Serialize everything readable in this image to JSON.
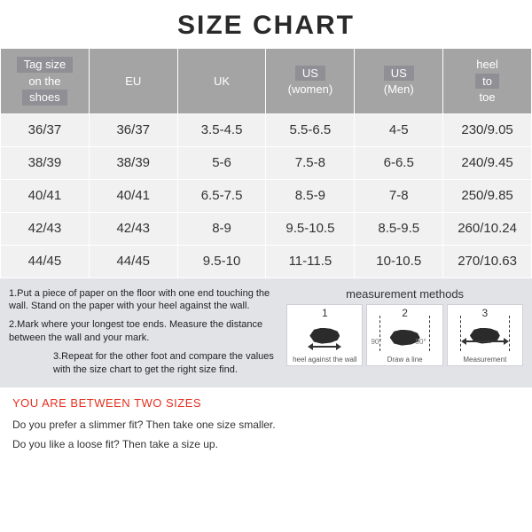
{
  "title": "SIZE CHART",
  "title_fontsize": 30,
  "table": {
    "header_bg": "#a4a4a4",
    "header_band_bg": "#8f8f95",
    "row_bg": "#f1f1f1",
    "border_color": "#ffffff",
    "columns": [
      {
        "lines": [
          "Tag size",
          "on the",
          "shoes"
        ],
        "banded": [
          true,
          false,
          true
        ]
      },
      {
        "lines": [
          "EU"
        ],
        "banded": [
          false
        ]
      },
      {
        "lines": [
          "UK"
        ],
        "banded": [
          false
        ]
      },
      {
        "lines": [
          "US",
          "(women)"
        ],
        "banded": [
          true,
          false
        ]
      },
      {
        "lines": [
          "US",
          "(Men)"
        ],
        "banded": [
          true,
          false
        ]
      },
      {
        "lines": [
          "heel",
          "to",
          "toe"
        ],
        "banded": [
          false,
          true,
          false
        ]
      }
    ],
    "rows": [
      [
        "36/37",
        "36/37",
        "3.5-4.5",
        "5.5-6.5",
        "4-5",
        "230/9.05"
      ],
      [
        "38/39",
        "38/39",
        "5-6",
        "7.5-8",
        "6-6.5",
        "240/9.45"
      ],
      [
        "40/41",
        "40/41",
        "6.5-7.5",
        "8.5-9",
        "7-8",
        "250/9.85"
      ],
      [
        "42/43",
        "42/43",
        "8-9",
        "9.5-10.5",
        "8.5-9.5",
        "260/10.24"
      ],
      [
        "44/45",
        "44/45",
        "9.5-10",
        "11-11.5",
        "10-10.5",
        "270/10.63"
      ]
    ]
  },
  "instructions": {
    "bg": "#e1e3e6",
    "paragraphs": [
      "1.Put a piece of paper on the floor with one end touching the wall. Stand on the paper with your heel against the wall.",
      "2.Mark where your longest toe ends. Measure the distance between the wall and your mark.",
      "3.Repeat for the other foot and compare the values with the size chart to get the right size find."
    ],
    "measurement_title": "measurement methods",
    "steps": [
      {
        "num": "1",
        "caption": "heel against the wall"
      },
      {
        "num": "2",
        "caption": "Draw a line",
        "angle": "90°"
      },
      {
        "num": "3",
        "caption": "Measurement"
      }
    ]
  },
  "between": {
    "title": "YOU ARE BETWEEN TWO SIZES",
    "title_color": "#e53020",
    "lines": [
      "Do you prefer a slimmer fit? Then take one size smaller.",
      "Do you like a loose fit? Then take a size up."
    ]
  }
}
